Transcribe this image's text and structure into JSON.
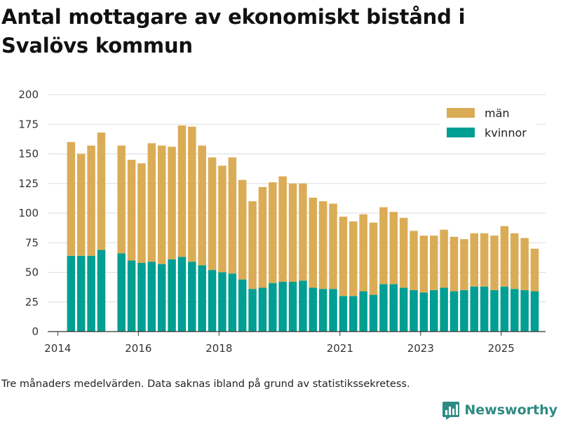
{
  "title": "Antal mottagare av ekonomiskt bistånd i Svalövs kommun",
  "note": "Tre månaders medelvärden. Data saknas ibland på grund av statistikssekretess.",
  "brand": {
    "name": "Newsworthy"
  },
  "colors": {
    "man": "#dbac56",
    "kvinnor": "#009e93",
    "grid": "#dddddd",
    "axis": "#333333",
    "brand": "#2e8b82"
  },
  "chart_data": {
    "type": "bar",
    "stacked": true,
    "title": "Antal mottagare av ekonomiskt bistånd i Svalövs kommun",
    "xlabel": "",
    "ylabel": "",
    "ylim": [
      0,
      200
    ],
    "yticks": [
      0,
      25,
      50,
      75,
      100,
      125,
      150,
      175,
      200
    ],
    "xlim": [
      2013.75,
      2026.1
    ],
    "xticks": [
      {
        "value": 2014.0,
        "label": "2014"
      },
      {
        "value": 2016.0,
        "label": "2016"
      },
      {
        "value": 2018.0,
        "label": "2018"
      },
      {
        "value": 2021.0,
        "label": "2021"
      },
      {
        "value": 2023.0,
        "label": "2023"
      },
      {
        "value": 2025.0,
        "label": "2025"
      }
    ],
    "x": [
      2014.33,
      2014.58,
      2014.83,
      2015.08,
      2015.58,
      2015.83,
      2016.08,
      2016.33,
      2016.58,
      2016.83,
      2017.08,
      2017.33,
      2017.58,
      2017.83,
      2018.08,
      2018.33,
      2018.58,
      2018.83,
      2019.08,
      2019.33,
      2019.58,
      2019.83,
      2020.08,
      2020.33,
      2020.58,
      2020.83,
      2021.08,
      2021.33,
      2021.58,
      2021.83,
      2022.08,
      2022.33,
      2022.58,
      2022.83,
      2023.08,
      2023.33,
      2023.58,
      2023.83,
      2024.08,
      2024.33,
      2024.58,
      2024.83,
      2025.08,
      2025.33,
      2025.58,
      2025.83
    ],
    "series": [
      {
        "name": "kvinnor",
        "values": [
          64,
          64,
          64,
          69,
          66,
          60,
          58,
          59,
          57,
          61,
          63,
          59,
          56,
          52,
          50,
          49,
          44,
          36,
          37,
          41,
          42,
          42,
          43,
          37,
          36,
          36,
          30,
          30,
          34,
          31,
          40,
          40,
          37,
          35,
          33,
          35,
          37,
          34,
          35,
          38,
          38,
          35,
          38,
          36,
          35,
          34
        ]
      },
      {
        "name": "män",
        "values": [
          96,
          86,
          93,
          99,
          91,
          85,
          84,
          100,
          100,
          95,
          111,
          114,
          101,
          95,
          90,
          98,
          84,
          74,
          85,
          85,
          89,
          83,
          82,
          76,
          74,
          72,
          67,
          63,
          65,
          61,
          65,
          61,
          59,
          50,
          48,
          46,
          49,
          46,
          43,
          45,
          45,
          46,
          51,
          47,
          44,
          36
        ]
      }
    ],
    "legend": [
      "män",
      "kvinnor"
    ],
    "legend_position": "top-right",
    "grid": true
  }
}
